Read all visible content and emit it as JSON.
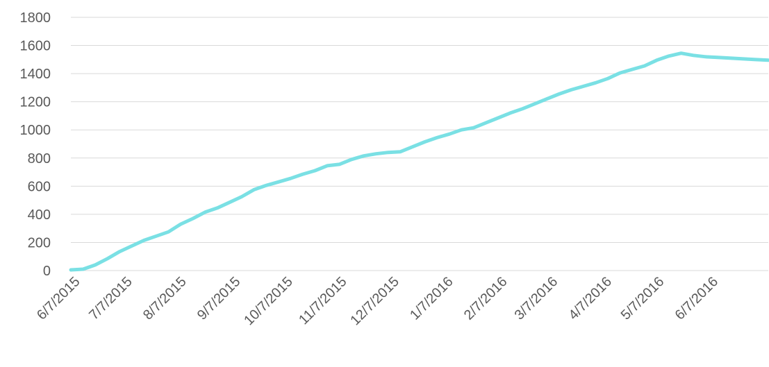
{
  "chart_data": {
    "type": "line",
    "title": "",
    "xlabel": "",
    "ylabel": "",
    "ylim": [
      0,
      1800
    ],
    "yticks": [
      0,
      200,
      400,
      600,
      800,
      1000,
      1200,
      1400,
      1600,
      1800
    ],
    "xlim": [
      "2015-06-07",
      "2016-07-11"
    ],
    "xtick_labels": [
      "6/7/2015",
      "7/7/2015",
      "8/7/2015",
      "9/7/2015",
      "10/7/2015",
      "11/7/2015",
      "12/7/2015",
      "1/7/2016",
      "2/7/2016",
      "3/7/2016",
      "4/7/2016",
      "5/7/2016",
      "6/7/2016"
    ],
    "grid": true,
    "legend": "none",
    "colors": {
      "line": "#7ae0e4",
      "grid": "#d9d9d9",
      "text": "#595959"
    },
    "series": [
      {
        "x": [
          "2015-06-07",
          "2015-06-14",
          "2015-06-21",
          "2015-06-28",
          "2015-07-05",
          "2015-07-12",
          "2015-07-19",
          "2015-07-26",
          "2015-08-02",
          "2015-08-09",
          "2015-08-16",
          "2015-08-23",
          "2015-08-30",
          "2015-09-06",
          "2015-09-13",
          "2015-09-20",
          "2015-09-27",
          "2015-10-04",
          "2015-10-11",
          "2015-10-18",
          "2015-10-25",
          "2015-11-01",
          "2015-11-08",
          "2015-11-15",
          "2015-11-22",
          "2015-11-29",
          "2015-12-06",
          "2015-12-13",
          "2015-12-20",
          "2015-12-27",
          "2016-01-03",
          "2016-01-10",
          "2016-01-17",
          "2016-01-24",
          "2016-01-31",
          "2016-02-07",
          "2016-02-14",
          "2016-02-21",
          "2016-02-28",
          "2016-03-06",
          "2016-03-13",
          "2016-03-20",
          "2016-03-27",
          "2016-04-03",
          "2016-04-10",
          "2016-04-17",
          "2016-04-24",
          "2016-05-01",
          "2016-05-08",
          "2016-05-15",
          "2016-05-22",
          "2016-05-29",
          "2016-06-05",
          "2016-06-12",
          "2016-06-19",
          "2016-06-26",
          "2016-07-03",
          "2016-07-11"
        ],
        "y": [
          5,
          10,
          40,
          85,
          135,
          175,
          215,
          245,
          275,
          330,
          370,
          415,
          445,
          485,
          525,
          575,
          605,
          630,
          655,
          685,
          710,
          745,
          755,
          790,
          815,
          830,
          840,
          845,
          880,
          915,
          945,
          970,
          1000,
          1015,
          1050,
          1085,
          1120,
          1150,
          1185,
          1220,
          1255,
          1285,
          1310,
          1335,
          1365,
          1405,
          1430,
          1455,
          1495,
          1525,
          1545,
          1530,
          1520,
          1515,
          1510,
          1505,
          1500,
          1495
        ]
      }
    ]
  }
}
